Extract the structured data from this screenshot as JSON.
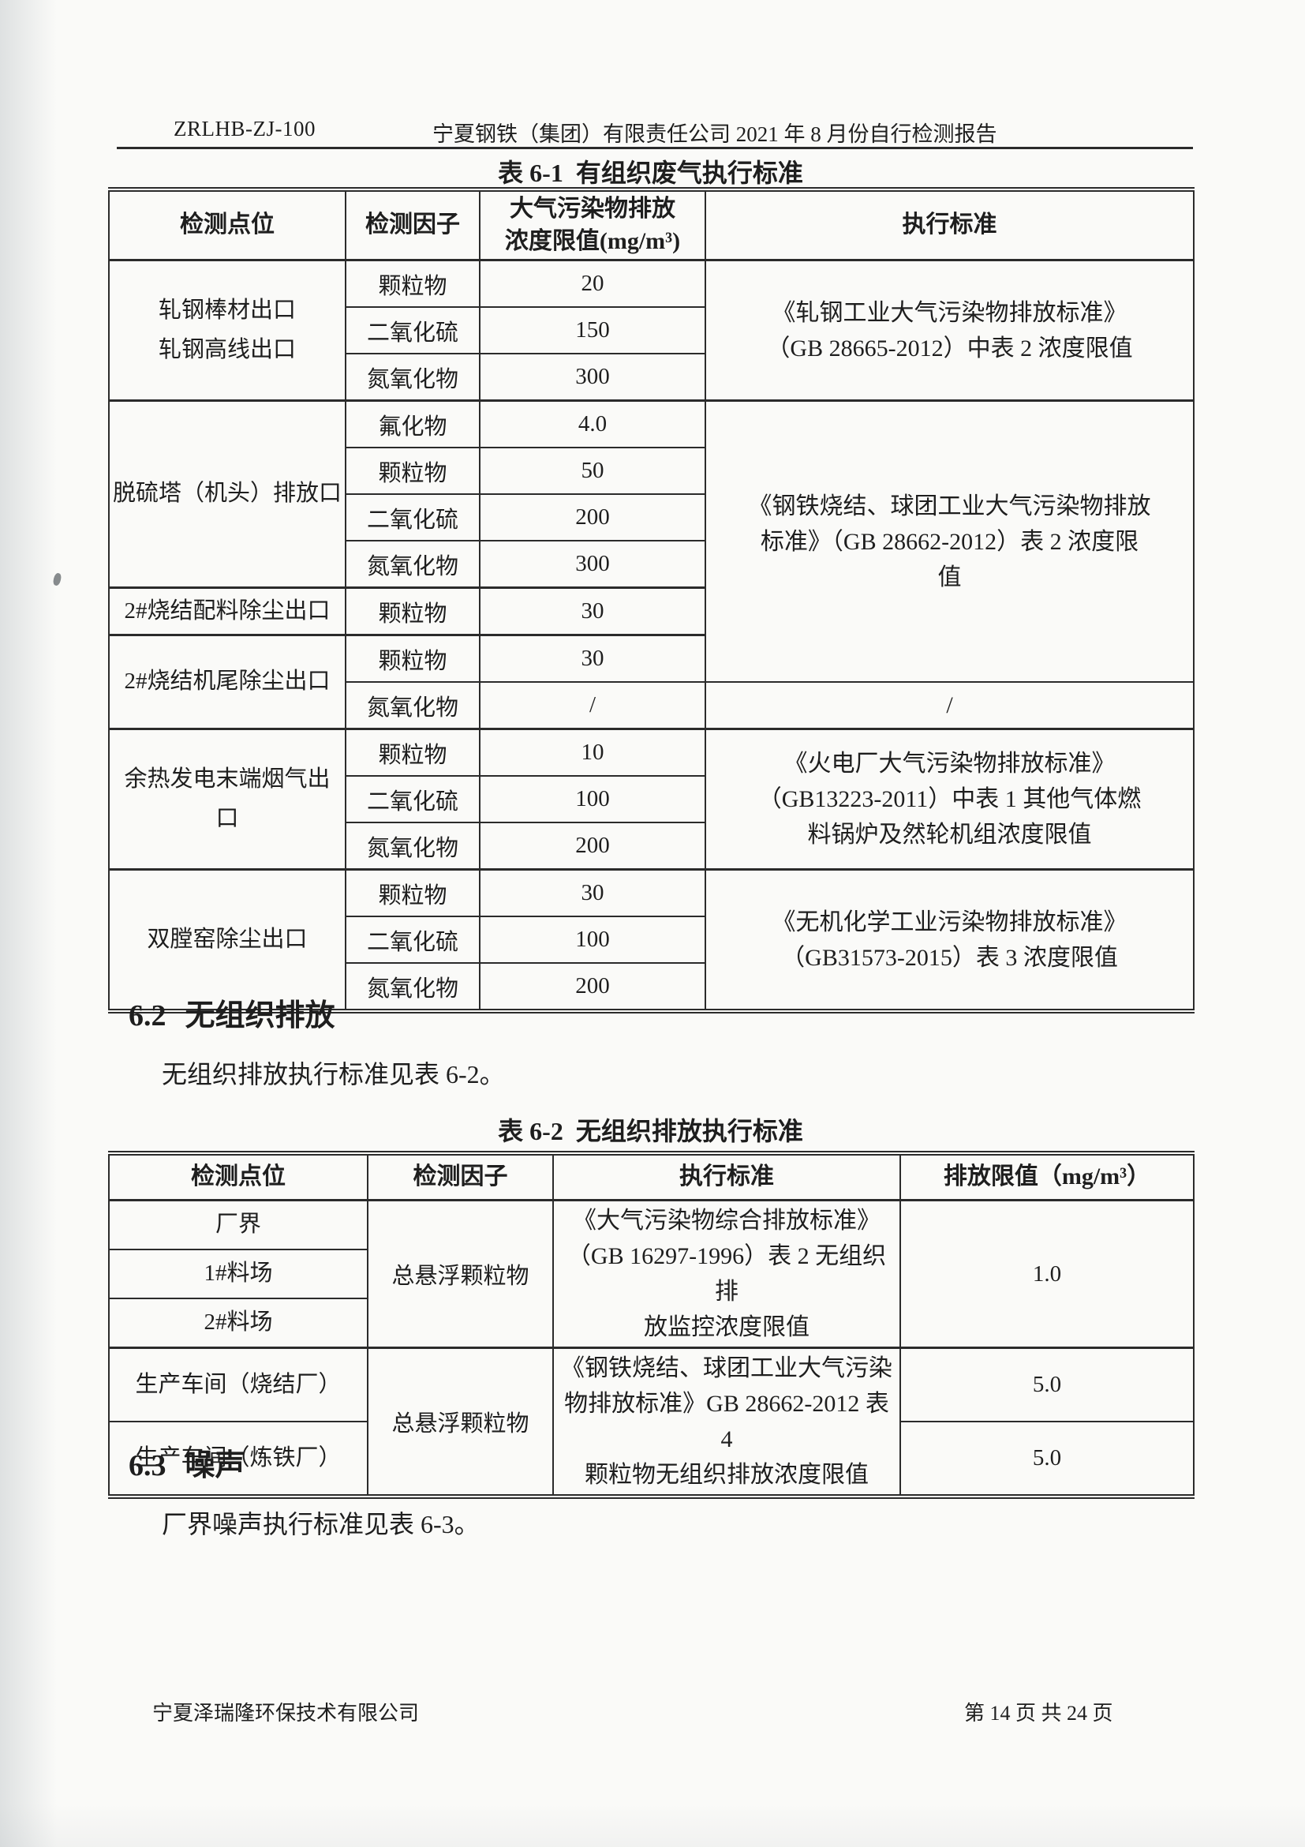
{
  "page": {
    "doc_code": "ZRLHB-ZJ-100",
    "header_title": "宁夏钢铁（集团）有限责任公司 2021 年 8 月份自行检测报告",
    "footer_company": "宁夏泽瑞隆环保技术有限公司",
    "footer_page": "第 14 页 共 24 页"
  },
  "sections": {
    "s62": {
      "num": "6.2",
      "title": "无组织排放",
      "body": "无组织排放执行标准见表 6-2。"
    },
    "s63": {
      "num": "6.3",
      "title": "噪声",
      "body": "厂界噪声执行标准见表 6-3。"
    }
  },
  "table1": {
    "title": "表 6-1  有组织废气执行标准",
    "col_widths": [
      "300px",
      "170px",
      "286px",
      "619px"
    ],
    "headers": [
      "检测点位",
      "检测因子",
      "大气污染物排放\n浓度限值(mg/m³)",
      "执行标准"
    ],
    "rows": [
      {
        "cells": [
          {
            "t": "轧钢棒材出口\n轧钢高线出口",
            "rs": 3,
            "c": "p"
          },
          {
            "t": "颗粒物",
            "c": "f"
          },
          {
            "t": "20",
            "c": "v"
          },
          {
            "t": "《轧钢工业大气污染物排放标准》\n（GB 28665-2012）中表 2 浓度限值",
            "rs": 3,
            "c": "s"
          }
        ]
      },
      {
        "cells": [
          {
            "t": "二氧化硫",
            "c": "f"
          },
          {
            "t": "150",
            "c": "v"
          }
        ]
      },
      {
        "cells": [
          {
            "t": "氮氧化物",
            "c": "f"
          },
          {
            "t": "300",
            "c": "v"
          }
        ]
      },
      {
        "thick": true,
        "cells": [
          {
            "t": "脱硫塔（机头）排放口",
            "rs": 4,
            "c": "p"
          },
          {
            "t": "氟化物",
            "c": "f"
          },
          {
            "t": "4.0",
            "c": "v"
          },
          {
            "t": "《钢铁烧结、球团工业大气污染物排放\n标准》（GB 28662-2012）表 2 浓度限\n值",
            "rs": 6,
            "c": "s"
          }
        ]
      },
      {
        "cells": [
          {
            "t": "颗粒物",
            "c": "f"
          },
          {
            "t": "50",
            "c": "v"
          }
        ]
      },
      {
        "cells": [
          {
            "t": "二氧化硫",
            "c": "f"
          },
          {
            "t": "200",
            "c": "v"
          }
        ]
      },
      {
        "cells": [
          {
            "t": "氮氧化物",
            "c": "f"
          },
          {
            "t": "300",
            "c": "v"
          }
        ]
      },
      {
        "thick": true,
        "cells": [
          {
            "t": "2#烧结配料除尘出口",
            "rs": 1,
            "c": "p"
          },
          {
            "t": "颗粒物",
            "c": "f"
          },
          {
            "t": "30",
            "c": "v"
          }
        ]
      },
      {
        "thick": true,
        "cells": [
          {
            "t": "2#烧结机尾除尘出口",
            "rs": 2,
            "c": "p"
          },
          {
            "t": "颗粒物",
            "c": "f"
          },
          {
            "t": "30",
            "c": "v"
          }
        ]
      },
      {
        "cells": [
          {
            "t": "氮氧化物",
            "c": "f"
          },
          {
            "t": "/",
            "c": "v"
          },
          {
            "t": "/",
            "c": "s"
          }
        ]
      },
      {
        "thick": true,
        "cells": [
          {
            "t": "余热发电末端烟气出\n口",
            "rs": 3,
            "c": "p"
          },
          {
            "t": "颗粒物",
            "c": "f"
          },
          {
            "t": "10",
            "c": "v"
          },
          {
            "t": "《火电厂大气污染物排放标准》\n（GB13223-2011）中表 1 其他气体燃\n料锅炉及然轮机组浓度限值",
            "rs": 3,
            "c": "s"
          }
        ]
      },
      {
        "cells": [
          {
            "t": "二氧化硫",
            "c": "f"
          },
          {
            "t": "100",
            "c": "v"
          }
        ]
      },
      {
        "cells": [
          {
            "t": "氮氧化物",
            "c": "f"
          },
          {
            "t": "200",
            "c": "v"
          }
        ]
      },
      {
        "thick": true,
        "cells": [
          {
            "t": "双膛窑除尘出口",
            "rs": 3,
            "c": "p"
          },
          {
            "t": "颗粒物",
            "c": "f"
          },
          {
            "t": "30",
            "c": "v"
          },
          {
            "t": "《无机化学工业污染物排放标准》\n（GB31573-2015）表 3 浓度限值",
            "rs": 3,
            "c": "s"
          }
        ]
      },
      {
        "cells": [
          {
            "t": "二氧化硫",
            "c": "f"
          },
          {
            "t": "100",
            "c": "v"
          }
        ]
      },
      {
        "cells": [
          {
            "t": "氮氧化物",
            "c": "f"
          },
          {
            "t": "200",
            "c": "v"
          }
        ]
      }
    ]
  },
  "table2": {
    "title": "表 6-2  无组织排放执行标准",
    "col_widths": [
      "328px",
      "235px",
      "440px",
      "372px"
    ],
    "headers": [
      "检测点位",
      "检测因子",
      "执行标准",
      "排放限值（mg/m³）"
    ],
    "rows": [
      {
        "cells": [
          {
            "t": "厂界",
            "c": "p"
          },
          {
            "t": "总悬浮颗粒物",
            "rs": 3,
            "c": "f"
          },
          {
            "t": "《大气污染物综合排放标准》\n（GB 16297-1996）表 2 无组织排\n放监控浓度限值",
            "rs": 3,
            "c": "s"
          },
          {
            "t": "1.0",
            "rs": 3,
            "c": "v"
          }
        ]
      },
      {
        "cells": [
          {
            "t": "1#料场",
            "c": "p"
          }
        ]
      },
      {
        "cells": [
          {
            "t": "2#料场",
            "c": "p"
          }
        ]
      },
      {
        "thick": true,
        "cells": [
          {
            "t": "生产车间（烧结厂）",
            "c": "p"
          },
          {
            "t": "总悬浮颗粒物",
            "rs": 2,
            "c": "f"
          },
          {
            "t": "《钢铁烧结、球团工业大气污染\n物排放标准》GB 28662-2012 表 4\n颗粒物无组织排放浓度限值",
            "rs": 2,
            "c": "s"
          },
          {
            "t": "5.0",
            "c": "v"
          }
        ]
      },
      {
        "cells": [
          {
            "t": "生产车间（炼铁厂）",
            "c": "p"
          },
          {
            "t": "5.0",
            "c": "v"
          }
        ]
      }
    ]
  },
  "colors": {
    "ink": "#1e1e1e",
    "line": "#2b2b2b",
    "paper": "#fafaf8"
  }
}
